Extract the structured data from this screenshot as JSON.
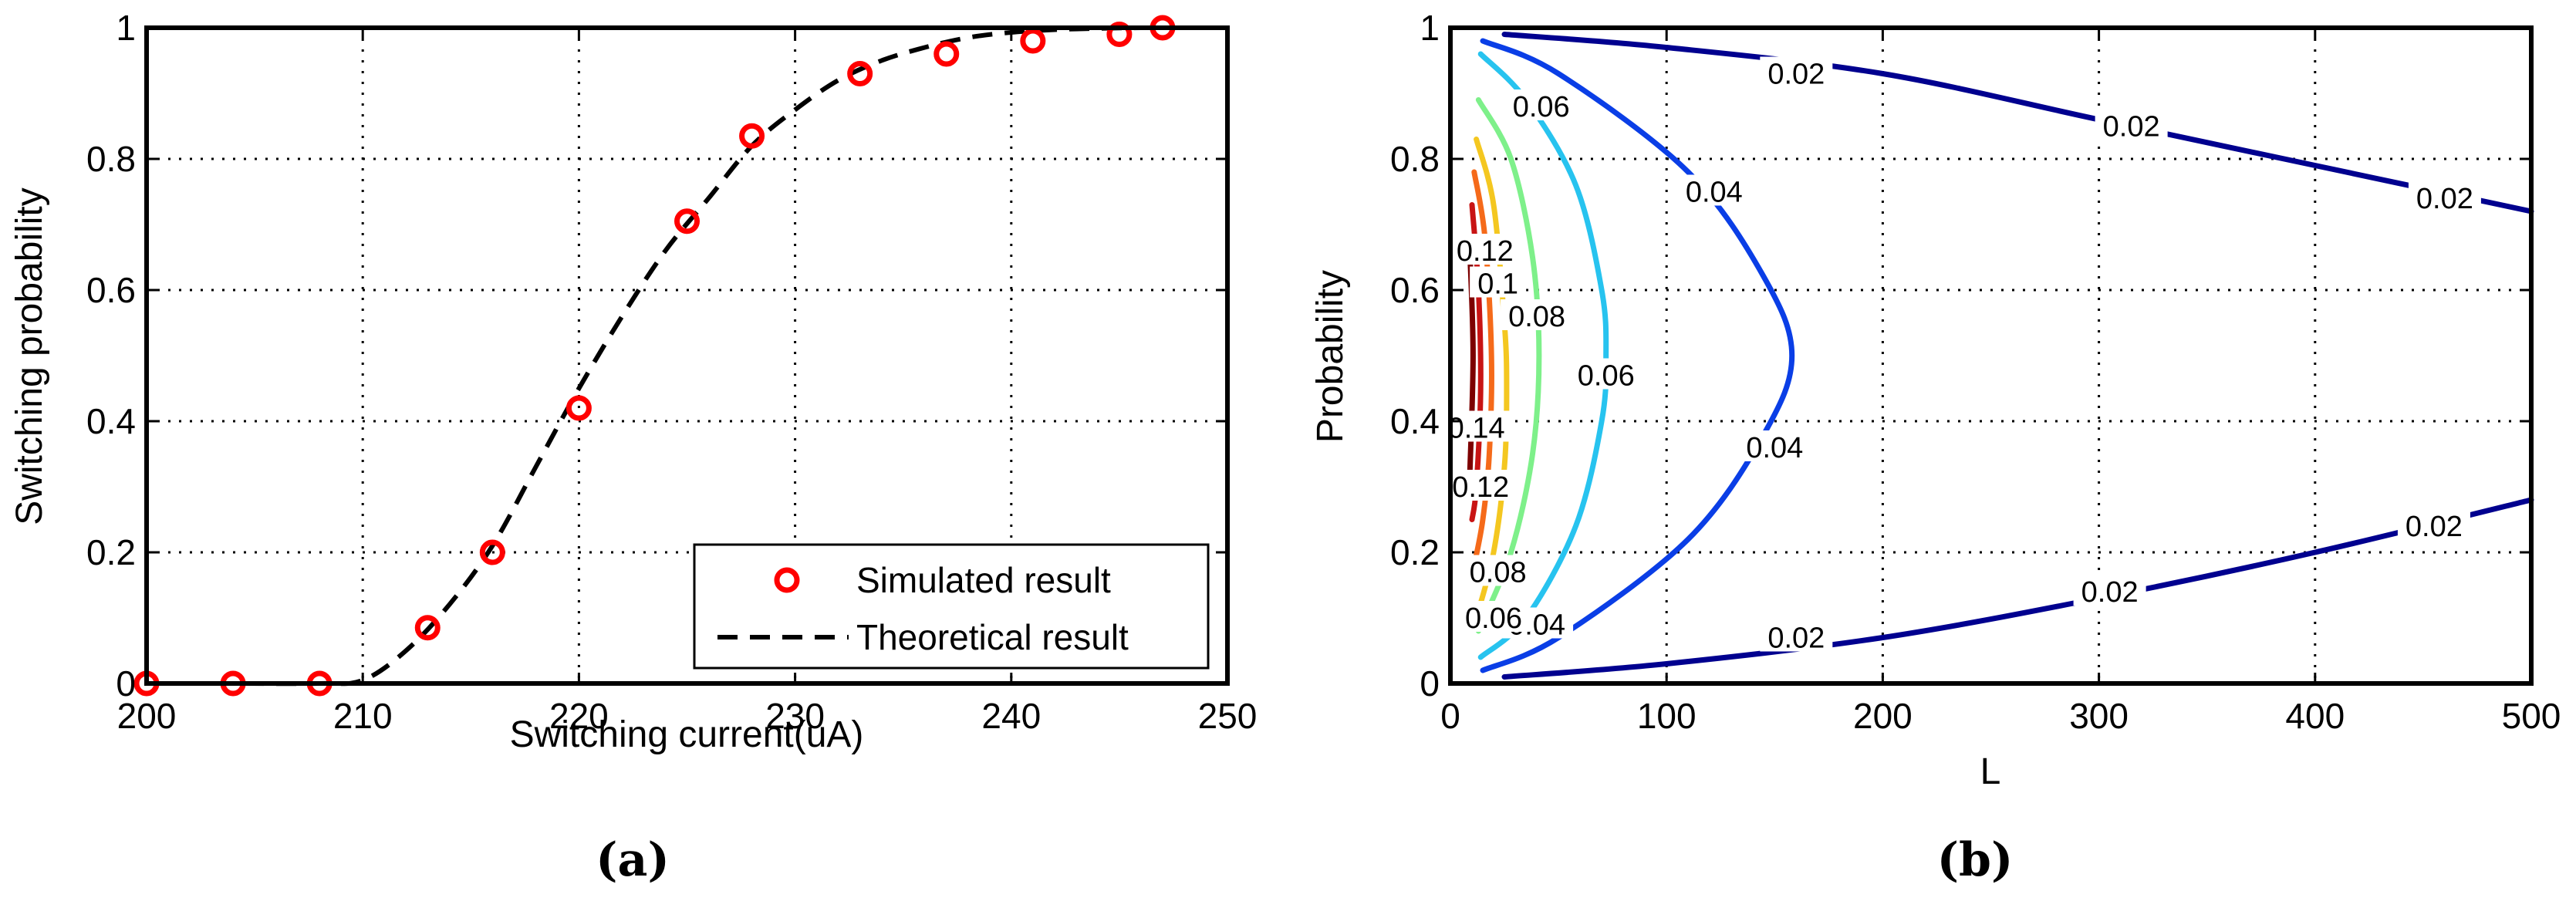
{
  "chart_data": [
    {
      "type": "scatter",
      "panel_label": "(a)",
      "xlabel": "Switching current(uA)",
      "ylabel": "Switching probability",
      "xlim": [
        200,
        250
      ],
      "ylim": [
        0,
        1
      ],
      "xticks": [
        200,
        210,
        220,
        230,
        240,
        250
      ],
      "yticks": [
        0,
        0.2,
        0.4,
        0.6,
        0.8,
        1
      ],
      "xtick_labels": [
        "200",
        "210",
        "220",
        "230",
        "240",
        "250"
      ],
      "ytick_labels": [
        "0",
        "0.2",
        "0.4",
        "0.6",
        "0.8",
        "1"
      ],
      "grid": true,
      "legend_position": "bottom-right",
      "series": [
        {
          "name": "Simulated result",
          "style": "markers",
          "color": "#ff0000",
          "x": [
            200,
            204,
            208,
            213,
            216,
            220,
            225,
            228,
            233,
            237,
            241,
            245,
            247
          ],
          "y": [
            0,
            0,
            0,
            0.085,
            0.2,
            0.42,
            0.705,
            0.835,
            0.93,
            0.96,
            0.98,
            0.99,
            1.0
          ]
        },
        {
          "name": "Theoretical result",
          "style": "dashed-line",
          "color": "#000000",
          "x": [
            200,
            204,
            208,
            210,
            212,
            214,
            216,
            218,
            220,
            222,
            224,
            226,
            228,
            230,
            232,
            234,
            236,
            238,
            240,
            242,
            244,
            246,
            248,
            250
          ],
          "y": [
            0,
            0,
            0,
            0.005,
            0.05,
            0.12,
            0.21,
            0.33,
            0.45,
            0.56,
            0.66,
            0.74,
            0.82,
            0.875,
            0.92,
            0.95,
            0.97,
            0.985,
            0.993,
            0.997,
            0.999,
            1.0,
            1.0,
            1.0
          ]
        }
      ]
    },
    {
      "type": "contour",
      "panel_label": "(b)",
      "xlabel": "L",
      "ylabel": "Probability",
      "xlim": [
        0,
        500
      ],
      "ylim": [
        0,
        1
      ],
      "xticks": [
        0,
        100,
        200,
        300,
        400,
        500
      ],
      "yticks": [
        0,
        0.2,
        0.4,
        0.6,
        0.8,
        1
      ],
      "xtick_labels": [
        "0",
        "100",
        "200",
        "300",
        "400",
        "500"
      ],
      "ytick_labels": [
        "0",
        "0.2",
        "0.4",
        "0.6",
        "0.8",
        "1"
      ],
      "grid": true,
      "levels": [
        {
          "level": "0.02",
          "color": "#00008f",
          "segments": [
            [
              [
                25,
                0.99
              ],
              [
                100,
                0.97
              ],
              [
                200,
                0.93
              ],
              [
                300,
                0.86
              ],
              [
                400,
                0.79
              ],
              [
                500,
                0.72
              ]
            ],
            [
              [
                25,
                0.01
              ],
              [
                100,
                0.03
              ],
              [
                200,
                0.07
              ],
              [
                300,
                0.13
              ],
              [
                400,
                0.2
              ],
              [
                500,
                0.28
              ]
            ]
          ],
          "labels": [
            {
              "text": "0.02",
              "x": 160,
              "y": 0.93
            },
            {
              "text": "0.02",
              "x": 315,
              "y": 0.85
            },
            {
              "text": "0.02",
              "x": 460,
              "y": 0.74
            },
            {
              "text": "0.02",
              "x": 160,
              "y": 0.07
            },
            {
              "text": "0.02",
              "x": 305,
              "y": 0.14
            },
            {
              "text": "0.02",
              "x": 455,
              "y": 0.24
            }
          ]
        },
        {
          "level": "0.04",
          "color": "#0a3ee6",
          "segments": [
            [
              [
                15,
                0.98
              ],
              [
                50,
                0.93
              ],
              [
                110,
                0.78
              ],
              [
                145,
                0.62
              ],
              [
                158,
                0.5
              ],
              [
                145,
                0.38
              ],
              [
                110,
                0.22
              ],
              [
                50,
                0.07
              ],
              [
                15,
                0.02
              ]
            ]
          ],
          "labels": [
            {
              "text": "0.04",
              "x": 122,
              "y": 0.75
            },
            {
              "text": "0.04",
              "x": 150,
              "y": 0.36
            },
            {
              "text": "0.04",
              "x": 40,
              "y": 0.09
            }
          ]
        },
        {
          "level": "0.06",
          "color": "#27c3ef",
          "segments": [
            [
              [
                14,
                0.96
              ],
              [
                35,
                0.89
              ],
              [
                58,
                0.76
              ],
              [
                70,
                0.6
              ],
              [
                72,
                0.5
              ],
              [
                70,
                0.4
              ],
              [
                58,
                0.24
              ],
              [
                35,
                0.1
              ],
              [
                14,
                0.04
              ]
            ]
          ],
          "labels": [
            {
              "text": "0.06",
              "x": 42,
              "y": 0.88
            },
            {
              "text": "0.06",
              "x": 72,
              "y": 0.47
            },
            {
              "text": "0.06",
              "x": 20,
              "y": 0.1
            }
          ]
        },
        {
          "level": "0.08",
          "color": "#7ef08a",
          "segments": [
            [
              [
                13,
                0.89
              ],
              [
                28,
                0.8
              ],
              [
                38,
                0.65
              ],
              [
                41,
                0.5
              ],
              [
                38,
                0.35
              ],
              [
                28,
                0.2
              ],
              [
                13,
                0.08
              ]
            ]
          ],
          "labels": [
            {
              "text": "0.08",
              "x": 40,
              "y": 0.56
            },
            {
              "text": "0.08",
              "x": 22,
              "y": 0.17
            }
          ]
        },
        {
          "level": "0.1",
          "color": "#f4c720",
          "segments": [
            [
              [
                12,
                0.83
              ],
              [
                20,
                0.73
              ],
              [
                25,
                0.55
              ],
              [
                26,
                0.45
              ],
              [
                25,
                0.33
              ],
              [
                20,
                0.2
              ],
              [
                12,
                0.1
              ]
            ]
          ],
          "labels": [
            {
              "text": "0.1",
              "x": 22,
              "y": 0.61
            }
          ]
        },
        {
          "level": "0.12",
          "color": "#f56a1a",
          "segments": [
            [
              [
                11,
                0.78
              ],
              [
                16,
                0.68
              ],
              [
                19,
                0.5
              ],
              [
                18,
                0.35
              ],
              [
                15,
                0.25
              ],
              [
                11,
                0.18
              ]
            ]
          ],
          "labels": [
            {
              "text": "0.12",
              "x": 16,
              "y": 0.66
            },
            {
              "text": "0.12",
              "x": 14,
              "y": 0.3
            }
          ]
        },
        {
          "level": "0.14",
          "color": "#c81414",
          "segments": [
            [
              [
                10,
                0.73
              ],
              [
                13,
                0.6
              ],
              [
                14,
                0.45
              ],
              [
                12,
                0.3
              ],
              [
                10,
                0.25
              ]
            ]
          ],
          "labels": [
            {
              "text": "0.14",
              "x": 12,
              "y": 0.39
            }
          ]
        },
        {
          "level": "0.16",
          "color": "#7d0000",
          "segments": [
            [
              [
                9,
                0.66
              ],
              [
                10.5,
                0.5
              ],
              [
                9,
                0.32
              ]
            ]
          ],
          "labels": []
        }
      ]
    }
  ]
}
